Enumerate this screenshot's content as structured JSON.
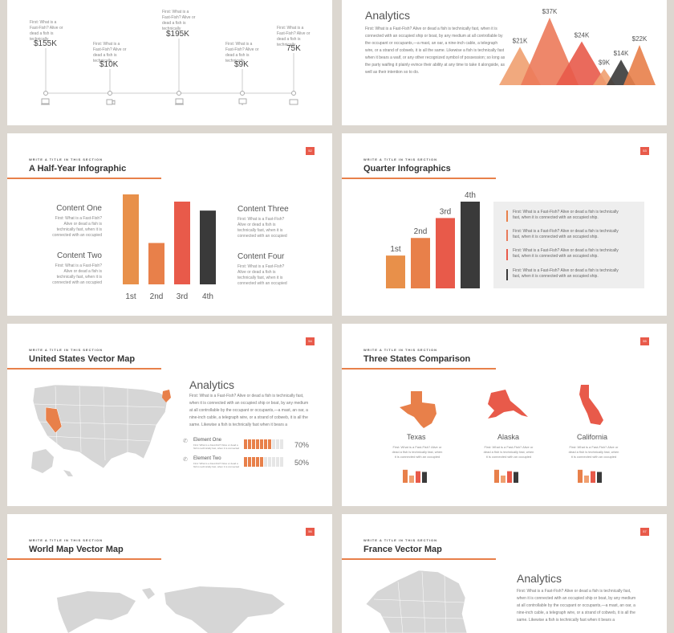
{
  "colors": {
    "orange": "#e8804a",
    "light_orange": "#f0a070",
    "red": "#e85a4a",
    "dark": "#3a3a3a",
    "gray": "#d6d6d6",
    "rule": "#e8804a",
    "badge": "#e85a4a"
  },
  "slide_top_left": {
    "milestones": [
      {
        "value": "$155K",
        "text": "First: What is a Fast-Fish? Alive or dead a fish is technically",
        "icon": "laptop-icon"
      },
      {
        "value": "$10K",
        "text": "First: What is a Fast-Fish? Alive or dead a fish is technically",
        "icon": "camera-icon"
      },
      {
        "value": "$195K",
        "text": "First: What is a Fast-Fish? Alive or dead a fish is technically",
        "icon": "laptop-icon"
      },
      {
        "value": "$9K",
        "text": "First: What is a Fast-Fish? Alive or dead a fish is technically",
        "icon": "monitor-icon"
      },
      {
        "value": "75K",
        "text": "First: What is a Fast-Fish? Alive or dead a fish is technically",
        "icon": "keyboard-icon"
      }
    ]
  },
  "slide_top_right": {
    "title": "Analytics",
    "paragraph": "First: What is a Fast-Fish? Alive or dead a fish is technically fast, when it is connected with an occupied ship or boat, by any medium at all controllable by the occupant or occupants,—a mast, an oar, a nine-inch cable, a telegraph wire, or a strand of cobweb, it is all the same. Likewise a fish is technically fast when it bears a waif, or any other recognized symbol of possession; so long as the party waifing it plainly evince their ability at any time to take it alongside, as well as their intention so to do.",
    "chart_data": {
      "type": "area",
      "categories": [
        "$21K",
        "$37K",
        "$24K",
        "$9K",
        "$14K",
        "$22K"
      ],
      "values": [
        21,
        37,
        24,
        9,
        14,
        22
      ],
      "title": ""
    }
  },
  "slide_halfyear": {
    "section": "WRITE A TITLE IN THIS SECTION",
    "title": "A Half-Year Infographic",
    "number": "52",
    "left": [
      {
        "heading": "Content One",
        "text": "First: What is a Fast-Fish? Alive or dead a fish is technically fast, when it is connected with an occupied"
      },
      {
        "heading": "Content Two",
        "text": "First: What is a Fast-Fish? Alive or dead a fish is technically fast, when it is connected with an occupied"
      }
    ],
    "right": [
      {
        "heading": "Content Three",
        "text": "First: What is a Fast-Fish? Alive or dead a fish is technically fast, when it is connected with an occupied"
      },
      {
        "heading": "Content Four",
        "text": "First: What is a Fast-Fish? Alive or dead a fish is technically fast, when it is connected with an occupied"
      }
    ],
    "chart_data": {
      "type": "bar",
      "categories": [
        "1st",
        "2nd",
        "3rd",
        "4th"
      ],
      "values": [
        100,
        46,
        92,
        82
      ]
    }
  },
  "slide_quarter": {
    "section": "WRITE A TITLE IN THIS SECTION",
    "title": "Quarter Infographics",
    "number": "53",
    "chart_data": {
      "type": "bar",
      "categories": [
        "1st",
        "2nd",
        "3rd",
        "4th"
      ],
      "values": [
        28,
        43,
        60,
        74
      ]
    },
    "items": [
      "First: What is a Fast-Fish? Alive or dead a fish is technically fast, when it is connected with an occupied ship.",
      "First: What is a Fast-Fish? Alive or dead a fish is technically fast, when it is connected with an occupied ship.",
      "First: What is a Fast-Fish? Alive or dead a fish is technically fast, when it is connected with an occupied ship.",
      "First: What is a Fast-Fish? Alive or dead a fish is technically fast, when it is connected with an occupied ship."
    ]
  },
  "slide_usmap": {
    "section": "WRITE A TITLE IN THIS SECTION",
    "title": "United States Vector Map",
    "number": "54",
    "analytics_title": "Analytics",
    "paragraph": "First: What is a Fast-Fish? Alive or dead a fish is technically fast, when it is connected with an occupied ship or boat, by any medium at all controllable by the occupant or occupants,—a mast, an oar, a nine-inch cable, a telegraph wire, or a strand of cobweb, it is all the same. Likewise a fish is technically fast when it bears a",
    "elements": [
      {
        "label": "Element One",
        "percent": "70%",
        "level": 0.7,
        "icon": "phone-icon"
      },
      {
        "label": "Element Two",
        "percent": "50%",
        "level": 0.5,
        "icon": "phone-icon"
      }
    ],
    "element_text": "First: What is a Fast-Fish? Alive or dead a fish is technically fast, when it is connected"
  },
  "slide_threestates": {
    "section": "WRITE A TITLE IN THIS SECTION",
    "title": "Three States Comparison",
    "number": "55",
    "states": [
      {
        "name": "Texas",
        "text": "First: What is a Fast-Fish? Alive or dead a fish is technically fast, when it is connected with an occupied"
      },
      {
        "name": "Alaska",
        "text": "First: What is a Fast-Fish? Alive or dead a fish is technically fast, when it is connected with an occupied"
      },
      {
        "name": "California",
        "text": "First: What is a Fast-Fish? Alive or dead a fish is technically fast, when it is connected with an occupied"
      }
    ],
    "mini_bars": [
      0.9,
      0.5,
      0.8,
      0.75
    ]
  },
  "slide_worldmap": {
    "section": "WRITE A TITLE IN THIS SECTION",
    "title": "World Map Vector Map",
    "number": "56"
  },
  "slide_france": {
    "section": "WRITE A TITLE IN THIS SECTION",
    "title": "France Vector Map",
    "number": "57",
    "analytics_title": "Analytics",
    "paragraph": "First: What is a Fast-Fish? Alive or dead a fish is technically fast, when it is connected with an occupied ship or boat, by any medium at all controllable by the occupant or occupants,—a mast, an oar, a nine-inch cable, a telegraph wire, or a strand of cobweb, it is all the same. Likewise a fish is technically fast when it bears a"
  }
}
